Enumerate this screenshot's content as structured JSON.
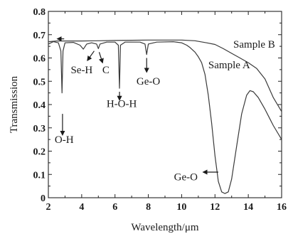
{
  "chart_data": {
    "type": "line",
    "xlabel": "Wavelength/μm",
    "ylabel": "Transmission",
    "xlim": [
      2,
      16
    ],
    "ylim": [
      0,
      0.8
    ],
    "x_ticks": [
      2,
      4,
      6,
      8,
      10,
      12,
      14,
      16
    ],
    "y_ticks": [
      0,
      0.1,
      0.2,
      0.3,
      0.4,
      0.5,
      0.6,
      0.7,
      0.8
    ],
    "x_tick_labels": [
      "2",
      "4",
      "6",
      "8",
      "10",
      "12",
      "14",
      "16"
    ],
    "y_tick_labels": [
      "0",
      "0.1",
      "0.2",
      "0.3",
      "0.4",
      "0.5",
      "0.6",
      "0.7",
      "0.8"
    ],
    "grid": false,
    "series": [
      {
        "name": "Sample A",
        "color": "#3a3a3a",
        "label_at": [
          11.6,
          0.555
        ],
        "points": [
          [
            2.0,
            0.66
          ],
          [
            2.3,
            0.67
          ],
          [
            2.6,
            0.665
          ],
          [
            2.75,
            0.63
          ],
          [
            2.82,
            0.45
          ],
          [
            2.88,
            0.63
          ],
          [
            3.0,
            0.665
          ],
          [
            3.5,
            0.667
          ],
          [
            3.9,
            0.655
          ],
          [
            4.1,
            0.638
          ],
          [
            4.3,
            0.66
          ],
          [
            4.6,
            0.665
          ],
          [
            4.9,
            0.66
          ],
          [
            5.0,
            0.64
          ],
          [
            5.1,
            0.66
          ],
          [
            5.5,
            0.668
          ],
          [
            6.0,
            0.668
          ],
          [
            6.2,
            0.655
          ],
          [
            6.27,
            0.47
          ],
          [
            6.33,
            0.655
          ],
          [
            6.6,
            0.668
          ],
          [
            7.5,
            0.668
          ],
          [
            7.8,
            0.66
          ],
          [
            7.9,
            0.615
          ],
          [
            8.0,
            0.66
          ],
          [
            8.5,
            0.668
          ],
          [
            9.5,
            0.67
          ],
          [
            10.0,
            0.665
          ],
          [
            10.3,
            0.655
          ],
          [
            10.5,
            0.645
          ],
          [
            10.8,
            0.625
          ],
          [
            11.0,
            0.605
          ],
          [
            11.2,
            0.58
          ],
          [
            11.4,
            0.53
          ],
          [
            11.6,
            0.44
          ],
          [
            11.8,
            0.32
          ],
          [
            12.0,
            0.18
          ],
          [
            12.2,
            0.07
          ],
          [
            12.4,
            0.025
          ],
          [
            12.6,
            0.018
          ],
          [
            12.8,
            0.025
          ],
          [
            13.0,
            0.08
          ],
          [
            13.3,
            0.22
          ],
          [
            13.6,
            0.36
          ],
          [
            13.9,
            0.44
          ],
          [
            14.1,
            0.46
          ],
          [
            14.3,
            0.455
          ],
          [
            14.6,
            0.43
          ],
          [
            15.0,
            0.38
          ],
          [
            15.5,
            0.31
          ],
          [
            16.0,
            0.25
          ]
        ]
      },
      {
        "name": "Sample B",
        "color": "#3a3a3a",
        "label_at": [
          13.1,
          0.645
        ],
        "points": [
          [
            2.0,
            0.67
          ],
          [
            2.5,
            0.673
          ],
          [
            3.0,
            0.673
          ],
          [
            4.0,
            0.673
          ],
          [
            5.0,
            0.674
          ],
          [
            6.0,
            0.675
          ],
          [
            7.0,
            0.676
          ],
          [
            8.0,
            0.677
          ],
          [
            9.0,
            0.677
          ],
          [
            10.0,
            0.677
          ],
          [
            10.8,
            0.674
          ],
          [
            11.5,
            0.665
          ],
          [
            12.0,
            0.658
          ],
          [
            12.5,
            0.64
          ],
          [
            13.0,
            0.62
          ],
          [
            13.5,
            0.6
          ],
          [
            14.0,
            0.58
          ],
          [
            14.5,
            0.555
          ],
          [
            15.0,
            0.51
          ],
          [
            15.5,
            0.43
          ],
          [
            16.0,
            0.37
          ]
        ]
      }
    ],
    "annotations": [
      {
        "id": "oh",
        "text": "O-H",
        "label_at": [
          2.95,
          0.235
        ],
        "arrow_from": [
          2.85,
          0.36
        ],
        "arrow_to": [
          2.85,
          0.27
        ]
      },
      {
        "id": "seh",
        "text": "Se-H",
        "label_at": [
          4.0,
          0.535
        ],
        "arrow_from": [
          4.75,
          0.63
        ],
        "arrow_to": [
          4.35,
          0.59
        ]
      },
      {
        "id": "c",
        "text": "C",
        "label_at": [
          5.45,
          0.535
        ],
        "arrow_from": [
          5.05,
          0.625
        ],
        "arrow_to": [
          5.25,
          0.58
        ]
      },
      {
        "id": "hoh",
        "text": "H-O-H",
        "label_at": [
          6.4,
          0.39
        ],
        "arrow_from": [
          6.27,
          0.455
        ],
        "arrow_to": [
          6.27,
          0.42
        ]
      },
      {
        "id": "geo1",
        "text": "Ge-O",
        "label_at": [
          8.0,
          0.485
        ],
        "arrow_from": [
          7.9,
          0.6
        ],
        "arrow_to": [
          7.9,
          0.54
        ]
      },
      {
        "id": "geo2",
        "text": "Ge-O",
        "label_at": [
          10.25,
          0.075
        ],
        "arrow_from": [
          12.2,
          0.11
        ],
        "arrow_to": [
          11.3,
          0.11
        ]
      },
      {
        "id": "top",
        "text": "",
        "label_at": [
          0,
          0
        ],
        "arrow_from": [
          2.95,
          0.682
        ],
        "arrow_to": [
          2.55,
          0.682
        ]
      }
    ]
  }
}
